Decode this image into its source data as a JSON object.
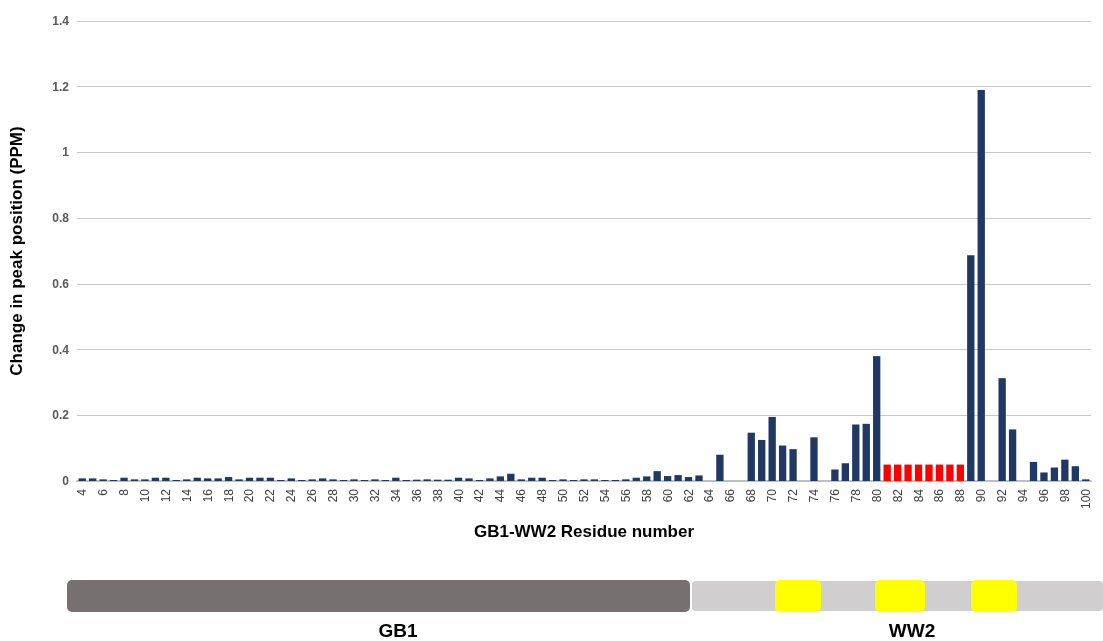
{
  "chart_data": {
    "type": "bar",
    "xlabel": "GB1-WW2 Residue number",
    "ylabel": "Change in peak position (PPM)",
    "categories": [
      "4",
      null,
      "6",
      null,
      "8",
      null,
      "10",
      null,
      "12",
      null,
      "14",
      null,
      "16",
      null,
      "18",
      null,
      "20",
      null,
      "22",
      null,
      "24",
      null,
      "26",
      null,
      "28",
      null,
      "30",
      null,
      "32",
      null,
      "34",
      null,
      "36",
      null,
      "38",
      null,
      "40",
      null,
      "42",
      null,
      "44",
      null,
      "46",
      null,
      "48",
      null,
      "50",
      null,
      "52",
      null,
      "54",
      null,
      "56",
      null,
      "58",
      null,
      "60",
      null,
      "62",
      null,
      "64",
      null,
      "66",
      null,
      "68",
      null,
      "70",
      null,
      "72",
      null,
      "74",
      null,
      "76",
      null,
      "78",
      null,
      "80",
      null,
      "82",
      null,
      "84",
      null,
      "86",
      null,
      "88",
      null,
      "90",
      null,
      "92",
      null,
      "94",
      null,
      "96",
      null,
      "98",
      null,
      "100"
    ],
    "values": [
      0.008,
      0.008,
      0.005,
      0.003,
      0.01,
      0.005,
      0.005,
      0.01,
      0.01,
      0.003,
      0.005,
      0.01,
      0.008,
      0.008,
      0.012,
      0.005,
      0.01,
      0.01,
      0.01,
      0.003,
      0.008,
      0.003,
      0.005,
      0.008,
      0.005,
      0.003,
      0.005,
      0.003,
      0.005,
      0.003,
      0.01,
      0.003,
      0.004,
      0.005,
      0.004,
      0.004,
      0.01,
      0.008,
      0.003,
      0.008,
      0.014,
      0.022,
      0.005,
      0.01,
      0.01,
      0.003,
      0.005,
      0.003,
      0.005,
      0.005,
      0.003,
      0.003,
      0.005,
      0.01,
      0.014,
      0.03,
      0.015,
      0.018,
      0.012,
      0.017,
      null,
      0.08,
      null,
      null,
      0.147,
      0.125,
      0.195,
      0.108,
      0.097,
      null,
      0.133,
      null,
      0.035,
      0.054,
      0.172,
      0.174,
      0.38,
      0.05,
      0.05,
      0.05,
      0.05,
      0.05,
      0.05,
      0.05,
      0.05,
      0.687,
      1.19,
      null,
      0.313,
      0.157,
      null,
      0.058,
      0.026,
      0.041,
      0.065,
      0.045,
      0.005
    ],
    "colors": [
      "#203864",
      "#203864",
      "#203864",
      "#203864",
      "#203864",
      "#203864",
      "#203864",
      "#203864",
      "#203864",
      "#203864",
      "#203864",
      "#203864",
      "#203864",
      "#203864",
      "#203864",
      "#203864",
      "#203864",
      "#203864",
      "#203864",
      "#203864",
      "#203864",
      "#203864",
      "#203864",
      "#203864",
      "#203864",
      "#203864",
      "#203864",
      "#203864",
      "#203864",
      "#203864",
      "#203864",
      "#203864",
      "#203864",
      "#203864",
      "#203864",
      "#203864",
      "#203864",
      "#203864",
      "#203864",
      "#203864",
      "#203864",
      "#203864",
      "#203864",
      "#203864",
      "#203864",
      "#203864",
      "#203864",
      "#203864",
      "#203864",
      "#203864",
      "#203864",
      "#203864",
      "#203864",
      "#203864",
      "#203864",
      "#203864",
      "#203864",
      "#203864",
      "#203864",
      "#203864",
      "#203864",
      "#203864",
      "#203864",
      "#203864",
      "#203864",
      "#203864",
      "#203864",
      "#203864",
      "#203864",
      "#203864",
      "#203864",
      "#203864",
      "#203864",
      "#203864",
      "#203864",
      "#203864",
      "#203864",
      "#ff0000",
      "#ff0000",
      "#ff0000",
      "#ff0000",
      "#ff0000",
      "#ff0000",
      "#ff0000",
      "#ff0000",
      "#203864",
      "#203864",
      "#203864",
      "#203864",
      "#203864",
      "#203864",
      "#203864",
      "#203864",
      "#203864",
      "#203864",
      "#203864",
      "#203864"
    ],
    "ylim": [
      0,
      1.4
    ],
    "yticks": [
      0,
      0.2,
      0.4,
      0.6,
      0.8,
      1,
      1.2,
      1.4
    ],
    "grid": "y",
    "annotations": [
      "GB1",
      "WW2"
    ]
  }
}
